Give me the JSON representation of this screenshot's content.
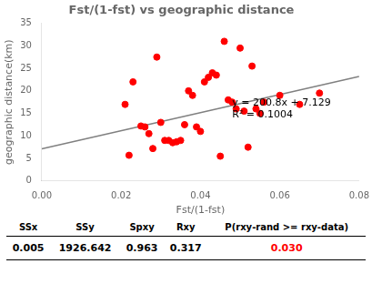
{
  "chart_data": {
    "type": "scatter",
    "title": "Fst/(1-fst) vs geographic distance",
    "xlabel": "Fst/(1-fst)",
    "ylabel": "geographic distance(km)",
    "xlim": [
      0.0,
      0.08
    ],
    "ylim": [
      0,
      35
    ],
    "xticks": [
      {
        "value": 0.0,
        "label": "0.00"
      },
      0.02,
      0.04,
      0.06,
      0.08
    ],
    "yticks": [
      0,
      5,
      10,
      15,
      20,
      25,
      30,
      35
    ],
    "grid": false,
    "series": [
      {
        "type": "scatter",
        "color": "#ff0000",
        "x": [
          0.021,
          0.023,
          0.022,
          0.025,
          0.026,
          0.027,
          0.028,
          0.029,
          0.03,
          0.031,
          0.032,
          0.033,
          0.034,
          0.035,
          0.036,
          0.037,
          0.038,
          0.039,
          0.04,
          0.041,
          0.042,
          0.043,
          0.044,
          0.045,
          0.046,
          0.047,
          0.048,
          0.049,
          0.05,
          0.051,
          0.052,
          0.053,
          0.054,
          0.055,
          0.056,
          0.06,
          0.065,
          0.07
        ],
        "values": [
          17.0,
          22.0,
          5.7,
          12.2,
          12.0,
          10.5,
          7.2,
          27.5,
          13.0,
          9.0,
          9.0,
          8.5,
          8.7,
          9.0,
          12.5,
          20.0,
          19.0,
          12.0,
          11.0,
          22.0,
          23.0,
          24.0,
          23.5,
          5.5,
          31.0,
          18.0,
          17.5,
          16.0,
          29.5,
          15.5,
          7.5,
          25.5,
          16.0,
          15.0,
          17.5,
          19.0,
          17.0,
          19.5
        ]
      },
      {
        "type": "line",
        "color": "#808080",
        "x": [
          0.0,
          0.08
        ],
        "values": [
          7.129,
          23.193
        ]
      }
    ],
    "annotations": [
      {
        "text": "y = 200.8x + 7.129\nR² = 0.1004",
        "x": 0.048,
        "y": 13.5
      }
    ],
    "table": {
      "headers": [
        "SSx",
        "SSy",
        "Spxy",
        "Rxy",
        "P(rxy-rand >= rxy-data)"
      ],
      "values": [
        "0.005",
        "1926.642",
        "0.963",
        "0.317",
        "0.030"
      ],
      "colors": [
        "black",
        "black",
        "black",
        "black",
        "red"
      ]
    }
  }
}
